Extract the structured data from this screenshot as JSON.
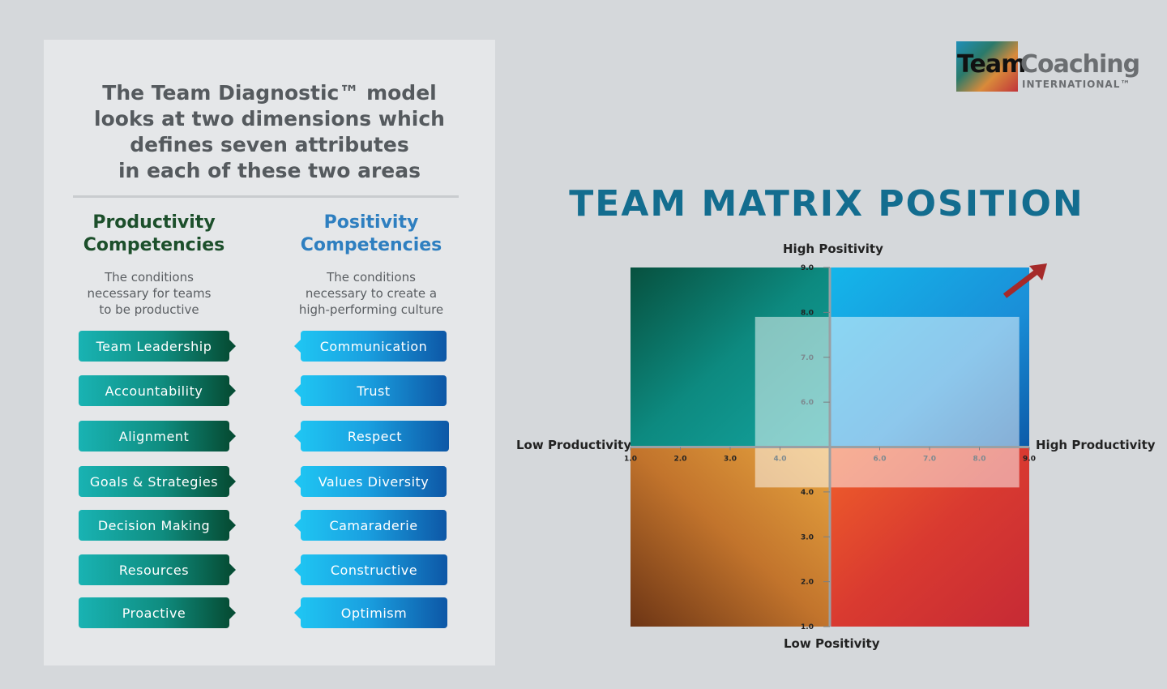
{
  "panel": {
    "title": "The Team Diagnostic™ model\nlooks at two dimensions which\ndefines seven attributes\nin each of these two areas",
    "productivity": {
      "heading": "Productivity\nCompetencies",
      "description": "The conditions\nnecessary for teams\nto be productive",
      "items": [
        "Team Leadership",
        "Accountability",
        "Alignment",
        "Goals & Strategies",
        "Decision Making",
        "Resources",
        "Proactive"
      ]
    },
    "positivity": {
      "heading": "Positivity\nCompetencies",
      "description": "The conditions\nnecessary to create a\nhigh-performing culture",
      "items": [
        "Communication",
        "Trust",
        "Respect",
        "Values Diversity",
        "Camaraderie",
        "Constructive",
        "Optimism"
      ]
    }
  },
  "logo": {
    "team": "Team",
    "coaching": "Coaching",
    "international": "INTERNATIONAL™"
  },
  "matrix": {
    "title": "TEAM MATRIX POSITION",
    "top_label": "High Positivity",
    "bottom_label": "Low Positivity",
    "left_label": "Low Productivity",
    "right_label": "High Productivity"
  },
  "chart_data": {
    "type": "scatter",
    "title": "TEAM MATRIX POSITION",
    "xlabel_low": "Low Productivity",
    "xlabel_high": "High Productivity",
    "ylabel_low": "Low Positivity",
    "ylabel_high": "High Positivity",
    "xlim": [
      1,
      9
    ],
    "ylim": [
      1,
      9
    ],
    "midpoint": [
      5,
      5
    ],
    "x_ticks": [
      "1.0",
      "2.0",
      "3.0",
      "4.0",
      "6.0",
      "7.0",
      "8.0",
      "9.0"
    ],
    "y_ticks": [
      "1.0",
      "2.0",
      "3.0",
      "4.0",
      "6.0",
      "7.0",
      "8.0",
      "9.0"
    ],
    "highlight_region": {
      "x": [
        3.5,
        8.8
      ],
      "y": [
        4.1,
        7.9
      ]
    },
    "quadrant_colors": {
      "top_left": "#0e8f86",
      "top_right": "#1a8fd8",
      "bottom_left": "#c2742c",
      "bottom_right": "#d03a36"
    },
    "arrow_color": "#a52a2a"
  }
}
